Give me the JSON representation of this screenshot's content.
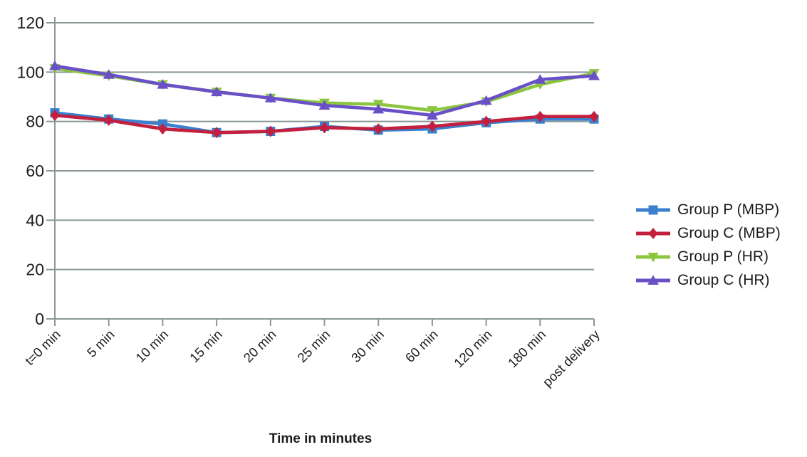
{
  "chart_data": {
    "type": "line",
    "title": "",
    "xlabel": "Time in minutes",
    "ylabel": "",
    "ylim": [
      0,
      120
    ],
    "yticks": [
      0,
      20,
      40,
      60,
      80,
      100,
      120
    ],
    "grid": "horizontal",
    "legend_position": "right",
    "categories": [
      "t=0 min",
      "5 min",
      "10 min",
      "15 min",
      "20 min",
      "25 min",
      "30 min",
      "60 min",
      "120 min",
      "180 min",
      "post delivery"
    ],
    "series": [
      {
        "name": "Group P (MBP)",
        "color": "#3a80ce",
        "marker": "square",
        "values": [
          83.5,
          81,
          79,
          75.5,
          76,
          78,
          76.5,
          77,
          79.5,
          81,
          81
        ]
      },
      {
        "name": "Group C (MBP)",
        "color": "#c2203e",
        "marker": "diamond",
        "values": [
          82.5,
          80.5,
          77,
          75.5,
          76,
          77.5,
          77,
          78,
          80,
          82,
          82
        ]
      },
      {
        "name": "Group P (HR)",
        "color": "#8cc63f",
        "marker": "triangle-down",
        "values": [
          101.5,
          98.5,
          95,
          92,
          89.5,
          87.5,
          87,
          84.5,
          88,
          95,
          99.5
        ]
      },
      {
        "name": "Group C (HR)",
        "color": "#6a50c7",
        "marker": "triangle-up",
        "values": [
          102.5,
          99,
          95,
          92,
          89.5,
          86.5,
          85,
          82.5,
          88.5,
          97,
          98.5
        ]
      }
    ],
    "axis_color": "#8a9898",
    "text_color": "#1c1c1c"
  }
}
